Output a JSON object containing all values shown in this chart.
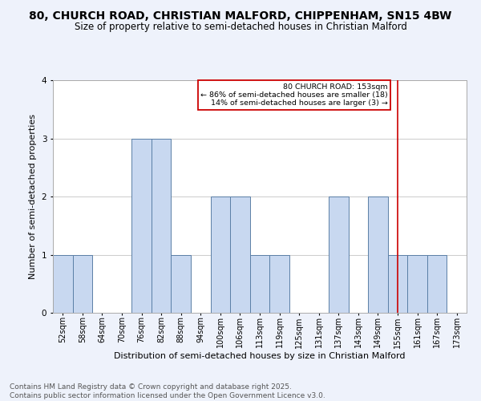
{
  "title1": "80, CHURCH ROAD, CHRISTIAN MALFORD, CHIPPENHAM, SN15 4BW",
  "title2": "Size of property relative to semi-detached houses in Christian Malford",
  "xlabel": "Distribution of semi-detached houses by size in Christian Malford",
  "ylabel": "Number of semi-detached properties",
  "categories": [
    "52sqm",
    "58sqm",
    "64sqm",
    "70sqm",
    "76sqm",
    "82sqm",
    "88sqm",
    "94sqm",
    "100sqm",
    "106sqm",
    "113sqm",
    "119sqm",
    "125sqm",
    "131sqm",
    "137sqm",
    "143sqm",
    "149sqm",
    "155sqm",
    "161sqm",
    "167sqm",
    "173sqm"
  ],
  "values": [
    1,
    1,
    0,
    0,
    3,
    3,
    1,
    0,
    2,
    2,
    1,
    1,
    0,
    0,
    2,
    0,
    2,
    1,
    1,
    1,
    0
  ],
  "bar_color": "#c8d8f0",
  "bar_edge_color": "#5b7fa6",
  "property_line_index": 17,
  "property_line_color": "#cc0000",
  "annotation_text": "80 CHURCH ROAD: 153sqm\n← 86% of semi-detached houses are smaller (18)\n14% of semi-detached houses are larger (3) →",
  "annotation_box_color": "#cc0000",
  "annotation_text_color": "#000000",
  "ylim": [
    0,
    4.0
  ],
  "yticks": [
    0,
    1,
    2,
    3,
    4
  ],
  "footnote": "Contains HM Land Registry data © Crown copyright and database right 2025.\nContains public sector information licensed under the Open Government Licence v3.0.",
  "bg_color": "#eef2fb",
  "plot_bg_color": "#ffffff",
  "title1_fontsize": 10,
  "title2_fontsize": 8.5,
  "xlabel_fontsize": 8,
  "ylabel_fontsize": 8,
  "tick_fontsize": 7,
  "footnote_fontsize": 6.5,
  "grid_color": "#cccccc"
}
